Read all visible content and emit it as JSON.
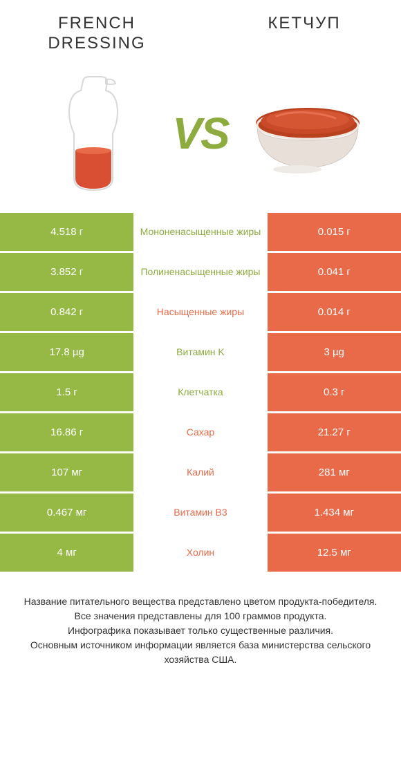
{
  "colors": {
    "green": "#96b945",
    "orange": "#e86a48",
    "green_text": "#8dab3e",
    "orange_text": "#e86a48",
    "vs": "#8dab3e",
    "background": "#ffffff",
    "header_text": "#333333"
  },
  "typography": {
    "header_fontsize": 24,
    "vs_fontsize": 64,
    "cell_fontsize": 15,
    "mid_fontsize": 14,
    "footer_fontsize": 14
  },
  "header": {
    "left_title": "French dressing",
    "right_title": "Кетчуп",
    "vs": "VS"
  },
  "rows": [
    {
      "left": "4.518 г",
      "mid": "Мононенасыщенные жиры",
      "right": "0.015 г",
      "winner": "left"
    },
    {
      "left": "3.852 г",
      "mid": "Полиненасыщенные жиры",
      "right": "0.041 г",
      "winner": "left"
    },
    {
      "left": "0.842 г",
      "mid": "Насыщенные жиры",
      "right": "0.014 г",
      "winner": "right"
    },
    {
      "left": "17.8 µg",
      "mid": "Витамин K",
      "right": "3 µg",
      "winner": "left"
    },
    {
      "left": "1.5 г",
      "mid": "Клетчатка",
      "right": "0.3 г",
      "winner": "left"
    },
    {
      "left": "16.86 г",
      "mid": "Сахар",
      "right": "21.27 г",
      "winner": "right"
    },
    {
      "left": "107 мг",
      "mid": "Калий",
      "right": "281 мг",
      "winner": "right"
    },
    {
      "left": "0.467 мг",
      "mid": "Витамин B3",
      "right": "1.434 мг",
      "winner": "right"
    },
    {
      "left": "4 мг",
      "mid": "Холин",
      "right": "12.5 мг",
      "winner": "right"
    }
  ],
  "footer": {
    "line1": "Название питательного вещества представлено цветом продукта-победителя.",
    "line2": "Все значения представлены для 100 граммов продукта.",
    "line3": "Инфографика показывает только существенные различия.",
    "line4": "Основным источником информации является база министерства сельского хозяйства США."
  }
}
